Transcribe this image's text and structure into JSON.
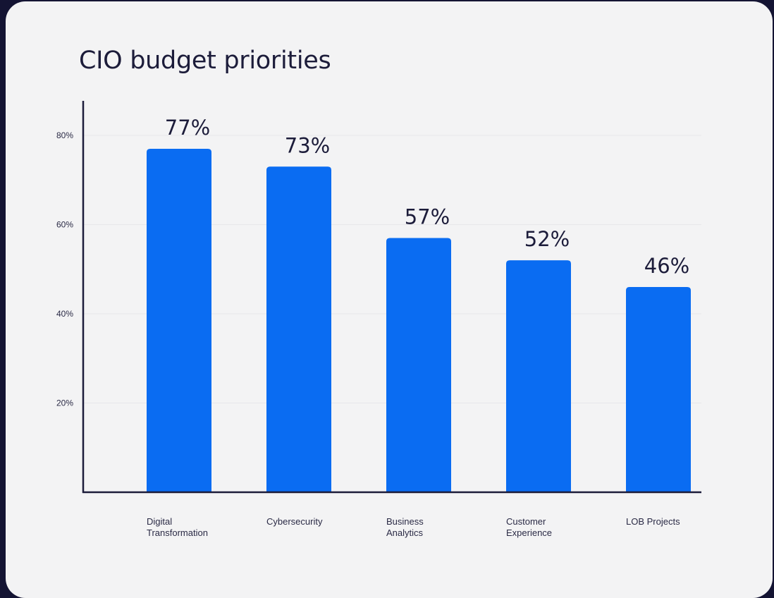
{
  "chart_data": {
    "type": "bar",
    "title": "CIO budget priorities",
    "categories": [
      [
        "Digital",
        "Transformation"
      ],
      [
        "Cybersecurity"
      ],
      [
        "Business",
        "Analytics"
      ],
      [
        "Customer",
        "Experience"
      ],
      [
        "LOB Projects"
      ]
    ],
    "values": [
      77,
      73,
      57,
      52,
      46
    ],
    "data_labels": [
      "77%",
      "73%",
      "57%",
      "52%",
      "46%"
    ],
    "yticks": [
      20,
      40,
      60,
      80
    ],
    "ytick_labels": [
      "20%",
      "40%",
      "60%",
      "80%"
    ],
    "ylim": [
      0,
      86
    ],
    "grid": true,
    "legend": "none",
    "bar_color": "#0a6cf2",
    "axis_color": "#1c1c3a",
    "grid_color": "#e7e7ea"
  }
}
